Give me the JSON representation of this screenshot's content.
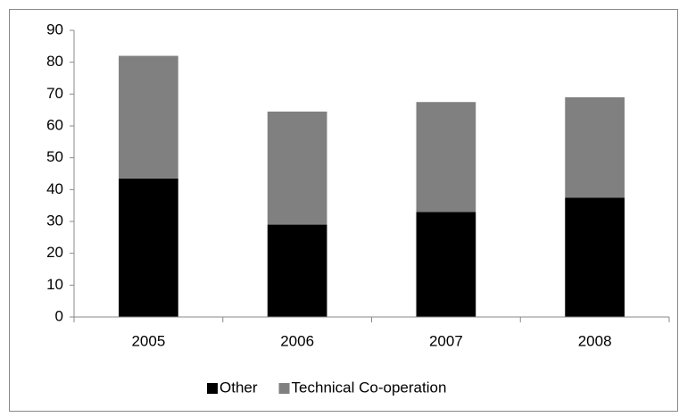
{
  "chart_data": {
    "type": "stacked-bar",
    "categories": [
      "2005",
      "2006",
      "2007",
      "2008"
    ],
    "series": [
      {
        "name": "Other",
        "color": "#000000",
        "values": [
          43.5,
          29,
          33,
          37.5
        ]
      },
      {
        "name": "Technical Co-operation",
        "color": "#808080",
        "values": [
          38.5,
          35.5,
          34.5,
          31.5
        ]
      }
    ],
    "ylim": [
      0,
      90
    ],
    "yticks": [
      0,
      10,
      20,
      30,
      40,
      50,
      60,
      70,
      80,
      90
    ],
    "grid": false,
    "legend": "bottom"
  }
}
